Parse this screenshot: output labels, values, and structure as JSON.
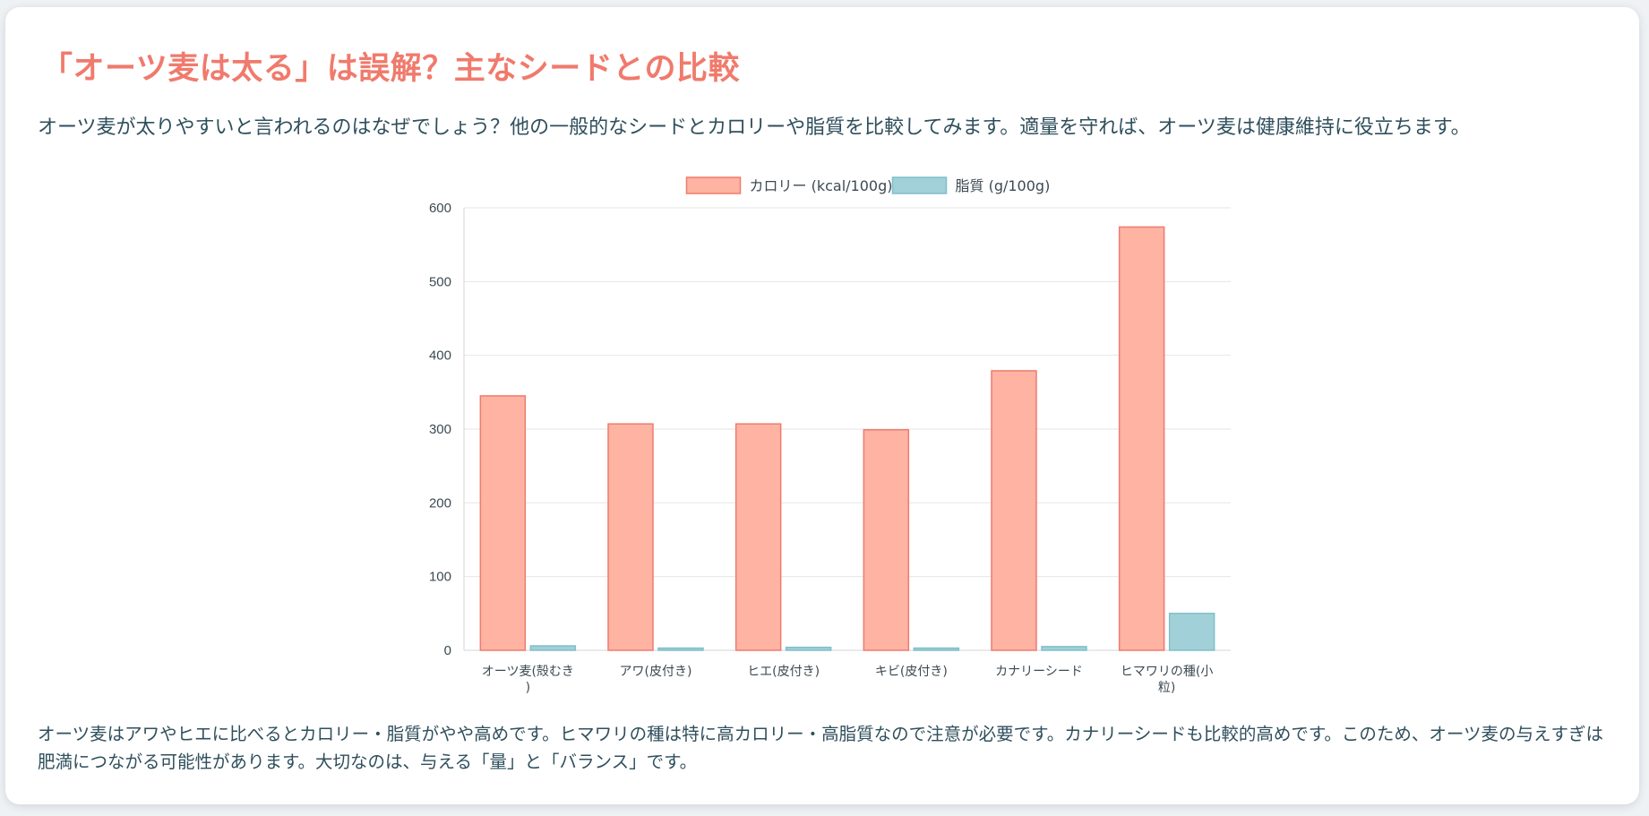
{
  "heading": "「オーツ麦は太る」は誤解？主なシードとの比較",
  "intro": "オーツ麦が太りやすいと言われるのはなぜでしょう？他の一般的なシードとカロリーや脂質を比較してみます。適量を守れば、オーツ麦は健康維持に役立ちます。",
  "conclusion": "オーツ麦はアワやヒエに比べるとカロリー・脂質がやや高めです。ヒマワリの種は特に高カロリー・高脂質なので注意が必要です。カナリーシードも比較的高めです。このため、オーツ麦の与えすぎは肥満につながる可能性があります。大切なのは、与える「量」と「バランス」です。",
  "chart_data": {
    "type": "bar",
    "categories": [
      [
        "オーツ麦(殻むき",
        ")"
      ],
      [
        "アワ(皮付き)"
      ],
      [
        "ヒエ(皮付き)"
      ],
      [
        "キビ(皮付き)"
      ],
      [
        "カナリーシード"
      ],
      [
        "ヒマワリの種(小",
        "粒)"
      ]
    ],
    "series": [
      {
        "name": "カロリー (kcal/100g)",
        "values": [
          345,
          307,
          307,
          299,
          379,
          574
        ],
        "fill": "#ffb3a2",
        "stroke": "#ef7b6e"
      },
      {
        "name": "脂質 (g/100g)",
        "values": [
          6,
          3,
          4,
          3,
          5,
          50
        ],
        "fill": "#a2d0d8",
        "stroke": "#7fbfca"
      }
    ],
    "ylim": [
      0,
      600
    ],
    "yticks": [
      0,
      100,
      200,
      300,
      400,
      500,
      600
    ],
    "grid": true,
    "legend": "top-center"
  }
}
